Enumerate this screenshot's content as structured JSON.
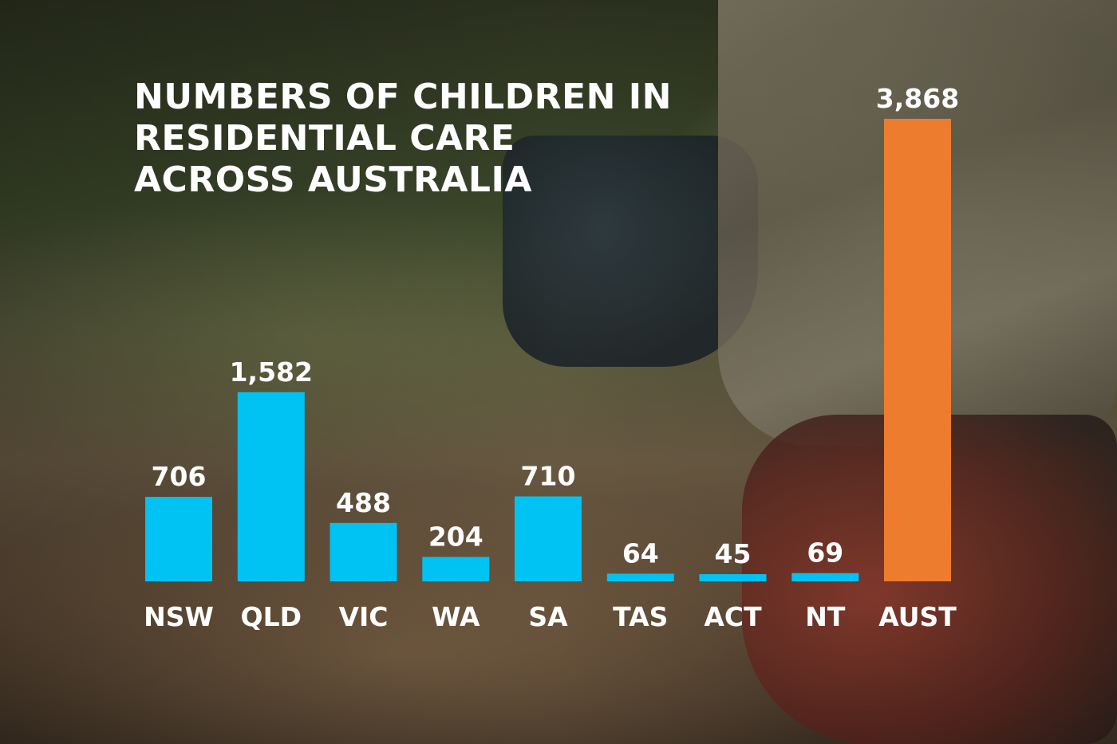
{
  "chart_data": {
    "type": "bar",
    "title_lines": [
      "NUMBERS OF CHILDREN IN",
      "RESIDENTIAL CARE",
      "ACROSS AUSTRALIA"
    ],
    "categories": [
      "NSW",
      "QLD",
      "VIC",
      "WA",
      "SA",
      "TAS",
      "ACT",
      "NT",
      "AUST"
    ],
    "values": [
      706,
      1582,
      488,
      204,
      710,
      64,
      45,
      69,
      3868
    ],
    "value_labels": [
      "706",
      "1,582",
      "488",
      "204",
      "710",
      "64",
      "45",
      "69",
      "3,868"
    ],
    "colors": [
      "#00c2f3",
      "#00c2f3",
      "#00c2f3",
      "#00c2f3",
      "#00c2f3",
      "#00c2f3",
      "#00c2f3",
      "#00c2f3",
      "#ee7c2f"
    ],
    "xlabel": "",
    "ylabel": "",
    "ylim": [
      0,
      3868
    ],
    "grid": false,
    "legend": "none"
  }
}
